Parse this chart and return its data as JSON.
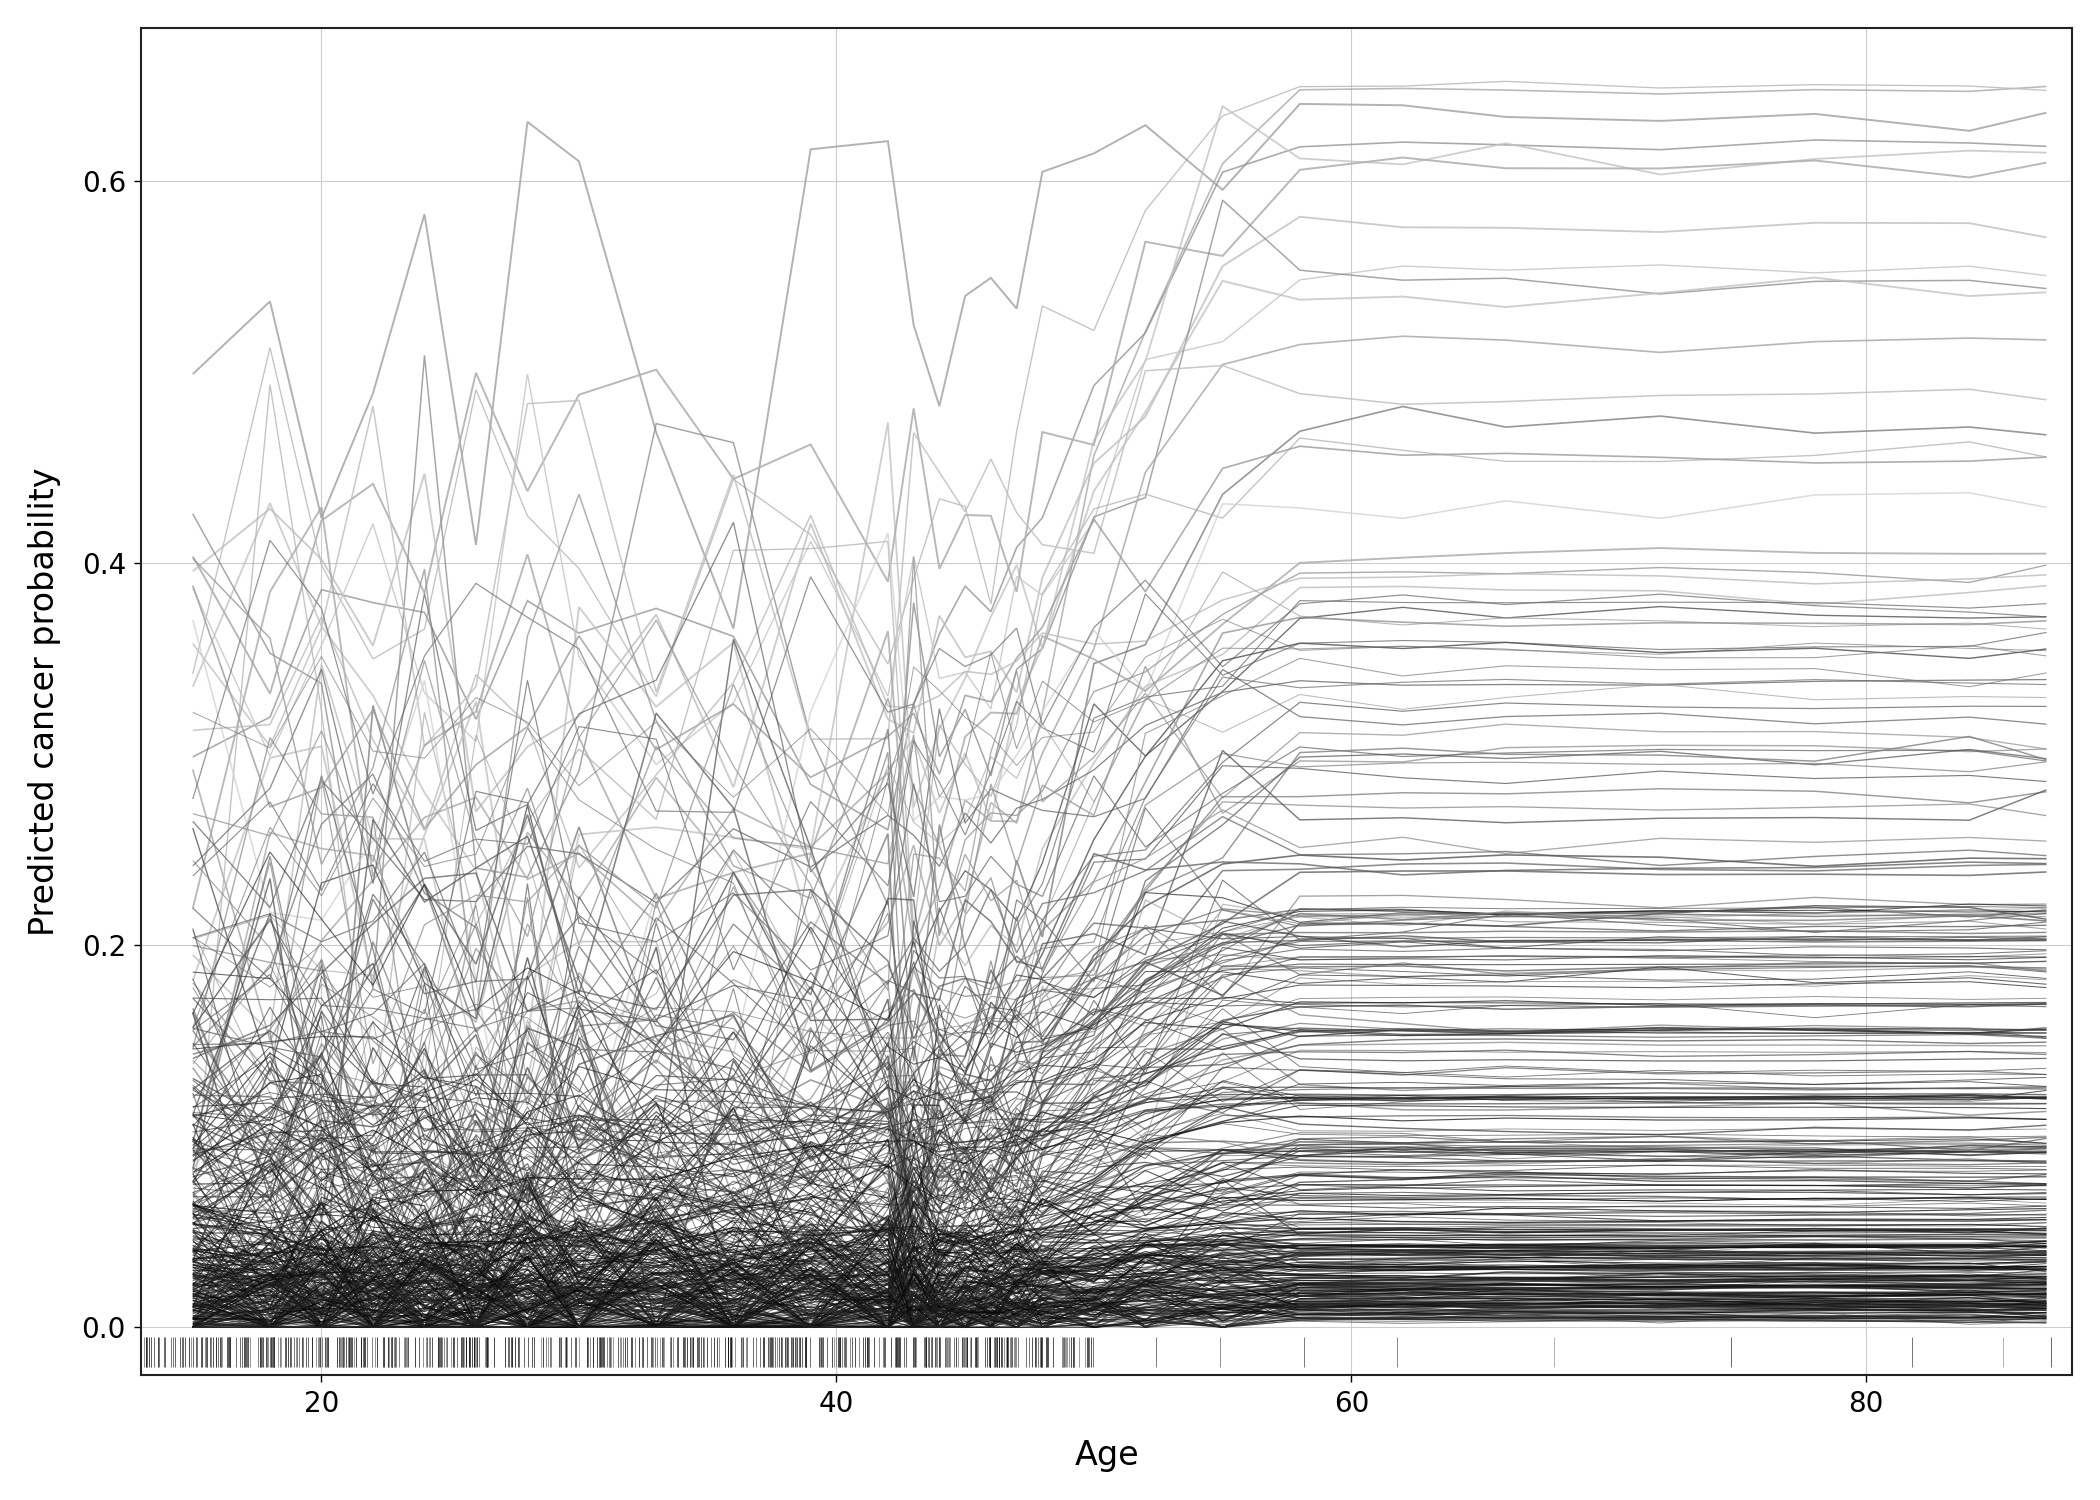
{
  "xlabel": "Age",
  "ylabel": "Predicted cancer probability",
  "xlim": [
    13,
    88
  ],
  "ylim": [
    -0.025,
    0.68
  ],
  "yticks": [
    0.0,
    0.2,
    0.4,
    0.6
  ],
  "xticks": [
    20,
    40,
    60,
    80
  ],
  "background_color": "#ffffff",
  "grid_color": "#cccccc",
  "seed": 42,
  "n_very_low": 220,
  "n_low": 80,
  "n_med": 40,
  "n_high": 20,
  "transition_age": 43,
  "plateau_age": 57
}
